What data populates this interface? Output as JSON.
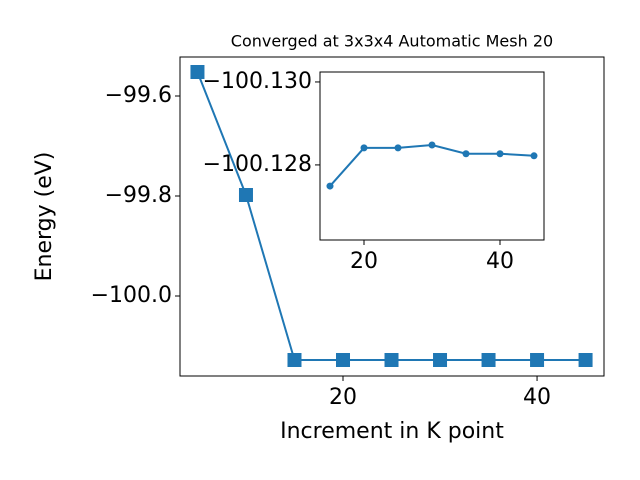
{
  "chart_data": [
    {
      "type": "line",
      "title": "Converged at 3x3x4 Automatic Mesh 20",
      "xlabel": "Increment in K point",
      "ylabel": "Energy (eV)",
      "x": [
        5,
        10,
        15,
        20,
        25,
        30,
        35,
        40,
        45
      ],
      "series": [
        {
          "color": "#1f77b4",
          "marker": "square",
          "values": [
            -99.552,
            -99.798,
            -100.128,
            -100.128,
            -100.128,
            -100.128,
            -100.128,
            -100.128,
            -100.128
          ]
        }
      ],
      "xlim": [
        3.2,
        46.9
      ],
      "xticks": [
        20,
        40
      ],
      "ylim": [
        -100.16,
        -99.522
      ],
      "yticks": [
        {
          "value": -100.0,
          "label": "−100.0"
        },
        {
          "value": -99.8,
          "label": "−99.8"
        },
        {
          "value": -99.6,
          "label": "−99.6"
        }
      ]
    },
    {
      "type": "line",
      "x": [
        15,
        20,
        25,
        30,
        35,
        40,
        45
      ],
      "series": [
        {
          "color": "#1f77b4",
          "marker": "circle",
          "values": [
            -100.12749,
            -100.12841,
            -100.12841,
            -100.12848,
            -100.12827,
            -100.12827,
            -100.12822
          ]
        }
      ],
      "xlim": [
        13.53,
        46.47
      ],
      "xticks": [
        20,
        40
      ],
      "ylim": [
        -100.12619,
        -100.13024
      ],
      "yticks": [
        {
          "value": -100.128,
          "label": "−100.128"
        },
        {
          "value": -100.13,
          "label": "−100.130"
        }
      ]
    }
  ]
}
